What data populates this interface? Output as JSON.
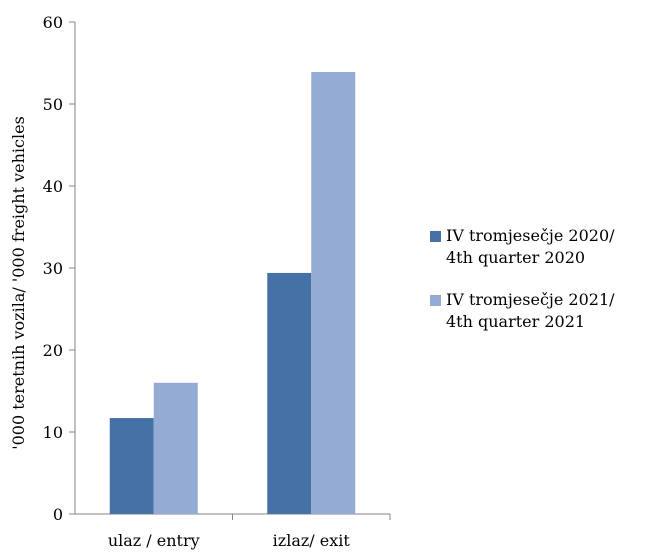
{
  "chart_data": {
    "type": "bar",
    "title": "",
    "xlabel": "",
    "ylabel": "'000 teretnih vozila/ '000 freight vehicles",
    "ylim": [
      0,
      60
    ],
    "yticks": [
      0,
      10,
      20,
      30,
      40,
      50,
      60
    ],
    "categories": [
      "ulaz / entry",
      "izlaz/ exit"
    ],
    "series": [
      {
        "name_line1": "IV tromjesečje 2020/",
        "name_line2": "4th quarter 2020",
        "color": "#4571a6",
        "values": [
          11.7,
          29.4
        ]
      },
      {
        "name_line1": "IV tromjesečje 2021/",
        "name_line2": "4th quarter 2021",
        "color": "#94abd4",
        "values": [
          16.0,
          53.9
        ]
      }
    ],
    "legend_position": "right",
    "grid": false
  }
}
